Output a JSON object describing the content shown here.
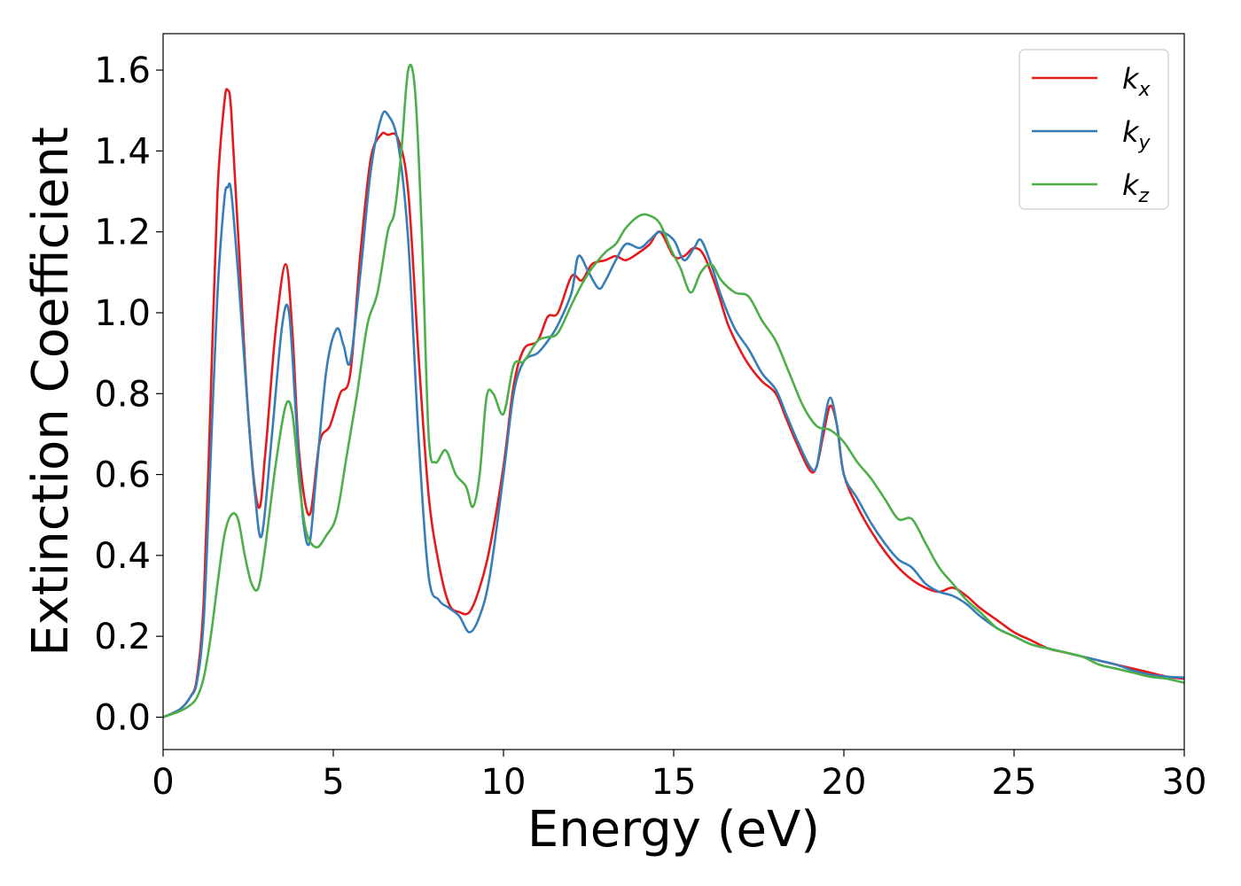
{
  "chart_data": {
    "type": "line",
    "title": "",
    "xlabel": "Energy (eV)",
    "ylabel": "Extinction Coefficient",
    "xlim": [
      0,
      30
    ],
    "ylim": [
      -0.08,
      1.69
    ],
    "xticks": [
      0,
      5,
      10,
      15,
      20,
      25,
      30
    ],
    "yticks": [
      0.0,
      0.2,
      0.4,
      0.6,
      0.8,
      1.0,
      1.2,
      1.4,
      1.6
    ],
    "xtick_labels": [
      "0",
      "5",
      "10",
      "15",
      "20",
      "25",
      "30"
    ],
    "ytick_labels": [
      "0.0",
      "0.2",
      "0.4",
      "0.6",
      "0.8",
      "1.0",
      "1.2",
      "1.4",
      "1.6"
    ],
    "grid": false,
    "legend": {
      "position": "top-right"
    },
    "series": [
      {
        "name": "k",
        "subscript": "x",
        "color": "#e41a1c",
        "x": [
          0,
          0.5,
          0.8,
          1.0,
          1.2,
          1.4,
          1.6,
          1.8,
          1.9,
          2.0,
          2.2,
          2.5,
          2.8,
          3.0,
          3.3,
          3.6,
          3.8,
          4.0,
          4.3,
          4.6,
          4.9,
          5.2,
          5.5,
          5.8,
          6.1,
          6.4,
          6.6,
          6.9,
          7.2,
          7.5,
          7.8,
          8.1,
          8.4,
          8.7,
          9.0,
          9.3,
          9.6,
          10.0,
          10.3,
          10.6,
          11.0,
          11.3,
          11.6,
          12.0,
          12.3,
          12.6,
          13.0,
          13.3,
          13.6,
          14.0,
          14.3,
          14.6,
          15.0,
          15.3,
          15.6,
          15.9,
          16.3,
          16.6,
          17.0,
          17.3,
          17.6,
          18.0,
          18.3,
          18.6,
          19.0,
          19.2,
          19.4,
          19.6,
          19.8,
          20.0,
          20.4,
          20.8,
          21.2,
          21.6,
          22.0,
          22.4,
          22.8,
          23.2,
          23.6,
          24.0,
          24.5,
          25.0,
          25.5,
          26.0,
          26.5,
          27.0,
          27.5,
          28.0,
          28.5,
          29.0,
          29.5,
          30.0
        ],
        "y": [
          0.0,
          0.02,
          0.05,
          0.1,
          0.3,
          0.8,
          1.3,
          1.52,
          1.55,
          1.5,
          1.2,
          0.75,
          0.52,
          0.65,
          0.95,
          1.12,
          0.95,
          0.65,
          0.5,
          0.68,
          0.72,
          0.8,
          0.85,
          1.15,
          1.38,
          1.44,
          1.44,
          1.43,
          1.3,
          0.9,
          0.55,
          0.38,
          0.28,
          0.26,
          0.26,
          0.32,
          0.42,
          0.62,
          0.82,
          0.91,
          0.93,
          0.99,
          1.0,
          1.09,
          1.08,
          1.12,
          1.13,
          1.14,
          1.13,
          1.15,
          1.17,
          1.2,
          1.14,
          1.14,
          1.16,
          1.14,
          1.05,
          0.97,
          0.9,
          0.86,
          0.83,
          0.8,
          0.74,
          0.68,
          0.61,
          0.62,
          0.7,
          0.77,
          0.72,
          0.6,
          0.52,
          0.46,
          0.41,
          0.37,
          0.34,
          0.32,
          0.31,
          0.32,
          0.3,
          0.27,
          0.24,
          0.21,
          0.19,
          0.17,
          0.16,
          0.15,
          0.14,
          0.13,
          0.12,
          0.11,
          0.1,
          0.095
        ]
      },
      {
        "name": "k",
        "subscript": "y",
        "color": "#377eb8",
        "x": [
          0,
          0.5,
          0.8,
          1.0,
          1.2,
          1.4,
          1.6,
          1.8,
          1.9,
          2.0,
          2.2,
          2.5,
          2.7,
          2.9,
          3.2,
          3.5,
          3.7,
          3.9,
          4.1,
          4.3,
          4.5,
          4.8,
          5.1,
          5.3,
          5.5,
          5.8,
          6.1,
          6.4,
          6.6,
          6.9,
          7.2,
          7.5,
          7.8,
          8.1,
          8.4,
          8.7,
          9.0,
          9.3,
          9.6,
          10.0,
          10.3,
          10.6,
          11.0,
          11.3,
          11.6,
          12.0,
          12.2,
          12.5,
          12.8,
          13.0,
          13.3,
          13.6,
          14.0,
          14.3,
          14.6,
          15.0,
          15.3,
          15.6,
          15.8,
          16.1,
          16.4,
          16.8,
          17.2,
          17.6,
          18.0,
          18.3,
          18.6,
          19.0,
          19.2,
          19.4,
          19.6,
          19.8,
          20.0,
          20.4,
          20.8,
          21.2,
          21.6,
          22.0,
          22.4,
          22.8,
          23.2,
          23.6,
          24.0,
          24.5,
          25.0,
          25.5,
          26.0,
          26.5,
          27.0,
          27.5,
          28.0,
          28.5,
          29.0,
          29.5,
          30.0
        ],
        "y": [
          0.0,
          0.02,
          0.05,
          0.09,
          0.25,
          0.65,
          1.05,
          1.28,
          1.31,
          1.3,
          1.1,
          0.75,
          0.55,
          0.45,
          0.7,
          0.97,
          1.0,
          0.75,
          0.5,
          0.43,
          0.6,
          0.86,
          0.96,
          0.92,
          0.88,
          1.1,
          1.35,
          1.48,
          1.49,
          1.42,
          1.18,
          0.7,
          0.35,
          0.29,
          0.27,
          0.25,
          0.21,
          0.25,
          0.35,
          0.6,
          0.8,
          0.88,
          0.9,
          0.93,
          0.97,
          1.05,
          1.14,
          1.1,
          1.06,
          1.08,
          1.13,
          1.17,
          1.16,
          1.18,
          1.2,
          1.18,
          1.13,
          1.16,
          1.18,
          1.12,
          1.04,
          0.96,
          0.91,
          0.85,
          0.81,
          0.75,
          0.69,
          0.62,
          0.62,
          0.72,
          0.79,
          0.72,
          0.6,
          0.54,
          0.48,
          0.43,
          0.39,
          0.37,
          0.33,
          0.31,
          0.3,
          0.28,
          0.25,
          0.22,
          0.2,
          0.18,
          0.17,
          0.16,
          0.15,
          0.14,
          0.13,
          0.115,
          0.105,
          0.1,
          0.098
        ]
      },
      {
        "name": "k",
        "subscript": "z",
        "color": "#4daf4a",
        "x": [
          0,
          0.5,
          0.8,
          1.0,
          1.2,
          1.4,
          1.6,
          1.8,
          2.0,
          2.2,
          2.4,
          2.6,
          2.8,
          3.0,
          3.3,
          3.6,
          3.8,
          4.0,
          4.2,
          4.5,
          4.8,
          5.1,
          5.4,
          5.7,
          6.0,
          6.3,
          6.6,
          6.8,
          7.0,
          7.2,
          7.4,
          7.6,
          7.8,
          8.0,
          8.3,
          8.6,
          8.9,
          9.1,
          9.3,
          9.5,
          9.7,
          10.0,
          10.3,
          10.6,
          11.0,
          11.3,
          11.6,
          12.0,
          12.3,
          12.6,
          13.0,
          13.3,
          13.6,
          14.0,
          14.3,
          14.6,
          14.9,
          15.2,
          15.5,
          15.8,
          16.1,
          16.4,
          16.8,
          17.2,
          17.6,
          18.0,
          18.4,
          18.8,
          19.2,
          19.6,
          20.0,
          20.4,
          20.8,
          21.2,
          21.6,
          22.0,
          22.4,
          22.8,
          23.2,
          23.6,
          24.0,
          24.5,
          25.0,
          25.5,
          26.0,
          26.5,
          27.0,
          27.5,
          28.0,
          28.5,
          29.0,
          29.5,
          30.0
        ],
        "y": [
          0.0,
          0.015,
          0.03,
          0.05,
          0.1,
          0.2,
          0.33,
          0.45,
          0.5,
          0.49,
          0.4,
          0.33,
          0.32,
          0.42,
          0.62,
          0.77,
          0.75,
          0.58,
          0.46,
          0.42,
          0.45,
          0.5,
          0.65,
          0.8,
          0.97,
          1.05,
          1.2,
          1.25,
          1.4,
          1.6,
          1.55,
          1.2,
          0.7,
          0.63,
          0.66,
          0.6,
          0.57,
          0.52,
          0.6,
          0.79,
          0.8,
          0.75,
          0.87,
          0.88,
          0.93,
          0.94,
          0.95,
          1.02,
          1.07,
          1.11,
          1.15,
          1.17,
          1.21,
          1.24,
          1.24,
          1.22,
          1.16,
          1.11,
          1.05,
          1.1,
          1.12,
          1.08,
          1.05,
          1.04,
          0.98,
          0.93,
          0.85,
          0.77,
          0.72,
          0.71,
          0.68,
          0.63,
          0.59,
          0.54,
          0.49,
          0.49,
          0.43,
          0.37,
          0.33,
          0.29,
          0.26,
          0.22,
          0.2,
          0.18,
          0.17,
          0.16,
          0.15,
          0.13,
          0.12,
          0.11,
          0.1,
          0.095,
          0.085
        ]
      }
    ]
  }
}
